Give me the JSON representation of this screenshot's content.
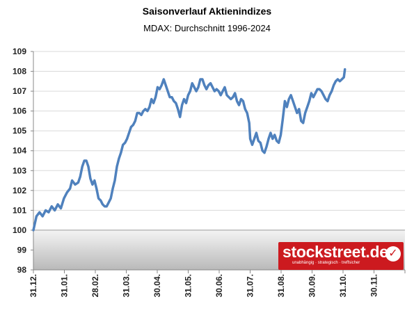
{
  "chart_data": {
    "type": "line",
    "title": "Saisonverlauf Aktienindizes",
    "subtitle": "MDAX: Durchschnitt 1996-2024",
    "xlabel": "",
    "ylabel": "",
    "ylim": [
      98,
      109
    ],
    "grid": true,
    "x_tick_labels": [
      "31.12.",
      "31.01.",
      "28.02.",
      "31.03.",
      "30.04.",
      "31.05.",
      "30.06.",
      "31.07.",
      "31.08.",
      "30.09.",
      "31.10.",
      "30.11."
    ],
    "y_tick_labels": [
      "98",
      "99",
      "100",
      "101",
      "102",
      "103",
      "104",
      "105",
      "106",
      "107",
      "108",
      "109"
    ],
    "x_range_days": [
      0,
      365
    ],
    "baseline": 100,
    "series": [
      {
        "color": "#4f81bd",
        "points": [
          [
            0,
            100.0
          ],
          [
            3,
            100.7
          ],
          [
            6,
            100.9
          ],
          [
            9,
            100.7
          ],
          [
            12,
            101.0
          ],
          [
            15,
            100.9
          ],
          [
            18,
            101.2
          ],
          [
            21,
            101.0
          ],
          [
            24,
            101.3
          ],
          [
            27,
            101.1
          ],
          [
            30,
            101.6
          ],
          [
            33,
            101.9
          ],
          [
            36,
            102.1
          ],
          [
            38,
            102.5
          ],
          [
            41,
            102.3
          ],
          [
            44,
            102.4
          ],
          [
            46,
            102.7
          ],
          [
            48,
            103.2
          ],
          [
            50,
            103.5
          ],
          [
            52,
            103.5
          ],
          [
            54,
            103.2
          ],
          [
            56,
            102.6
          ],
          [
            58,
            102.3
          ],
          [
            60,
            102.5
          ],
          [
            62,
            102.1
          ],
          [
            64,
            101.6
          ],
          [
            66,
            101.5
          ],
          [
            68,
            101.3
          ],
          [
            70,
            101.2
          ],
          [
            72,
            101.2
          ],
          [
            74,
            101.4
          ],
          [
            76,
            101.6
          ],
          [
            78,
            102.1
          ],
          [
            80,
            102.5
          ],
          [
            82,
            103.2
          ],
          [
            84,
            103.6
          ],
          [
            86,
            103.9
          ],
          [
            88,
            104.3
          ],
          [
            90,
            104.4
          ],
          [
            92,
            104.6
          ],
          [
            94,
            104.9
          ],
          [
            96,
            105.2
          ],
          [
            98,
            105.3
          ],
          [
            100,
            105.5
          ],
          [
            102,
            105.9
          ],
          [
            104,
            105.9
          ],
          [
            106,
            105.8
          ],
          [
            108,
            106.0
          ],
          [
            110,
            106.1
          ],
          [
            112,
            106.0
          ],
          [
            114,
            106.2
          ],
          [
            116,
            106.6
          ],
          [
            118,
            106.4
          ],
          [
            120,
            106.7
          ],
          [
            122,
            107.2
          ],
          [
            124,
            107.1
          ],
          [
            126,
            107.3
          ],
          [
            128,
            107.6
          ],
          [
            130,
            107.3
          ],
          [
            132,
            107.0
          ],
          [
            134,
            106.7
          ],
          [
            136,
            106.7
          ],
          [
            138,
            106.5
          ],
          [
            140,
            106.4
          ],
          [
            142,
            106.1
          ],
          [
            144,
            105.7
          ],
          [
            146,
            106.3
          ],
          [
            148,
            106.6
          ],
          [
            150,
            106.4
          ],
          [
            152,
            106.8
          ],
          [
            154,
            107.0
          ],
          [
            156,
            107.4
          ],
          [
            158,
            107.2
          ],
          [
            160,
            107.0
          ],
          [
            162,
            107.2
          ],
          [
            164,
            107.6
          ],
          [
            166,
            107.6
          ],
          [
            168,
            107.3
          ],
          [
            170,
            107.1
          ],
          [
            172,
            107.3
          ],
          [
            174,
            107.4
          ],
          [
            176,
            107.2
          ],
          [
            178,
            107.0
          ],
          [
            180,
            107.1
          ],
          [
            182,
            107.0
          ],
          [
            184,
            106.8
          ],
          [
            186,
            107.0
          ],
          [
            188,
            107.2
          ],
          [
            190,
            106.8
          ],
          [
            192,
            106.7
          ],
          [
            194,
            106.6
          ],
          [
            196,
            106.7
          ],
          [
            198,
            106.9
          ],
          [
            200,
            106.5
          ],
          [
            202,
            106.3
          ],
          [
            204,
            106.6
          ],
          [
            206,
            106.5
          ],
          [
            208,
            106.1
          ],
          [
            210,
            105.9
          ],
          [
            212,
            105.4
          ],
          [
            213,
            104.6
          ],
          [
            215,
            104.3
          ],
          [
            217,
            104.6
          ],
          [
            219,
            104.9
          ],
          [
            221,
            104.5
          ],
          [
            223,
            104.4
          ],
          [
            225,
            104.0
          ],
          [
            227,
            103.9
          ],
          [
            229,
            104.2
          ],
          [
            231,
            104.6
          ],
          [
            233,
            104.9
          ],
          [
            235,
            104.6
          ],
          [
            237,
            104.8
          ],
          [
            239,
            104.5
          ],
          [
            241,
            104.4
          ],
          [
            243,
            104.8
          ],
          [
            245,
            105.6
          ],
          [
            247,
            106.5
          ],
          [
            249,
            106.2
          ],
          [
            251,
            106.6
          ],
          [
            253,
            106.8
          ],
          [
            255,
            106.5
          ],
          [
            257,
            106.2
          ],
          [
            259,
            105.9
          ],
          [
            261,
            106.1
          ],
          [
            263,
            105.5
          ],
          [
            265,
            105.4
          ],
          [
            267,
            105.9
          ],
          [
            269,
            106.2
          ],
          [
            271,
            106.5
          ],
          [
            273,
            106.9
          ],
          [
            275,
            106.7
          ],
          [
            277,
            106.9
          ],
          [
            279,
            107.1
          ],
          [
            281,
            107.1
          ],
          [
            283,
            107.0
          ],
          [
            285,
            106.8
          ],
          [
            287,
            106.6
          ],
          [
            289,
            106.5
          ],
          [
            291,
            106.8
          ],
          [
            293,
            107.0
          ],
          [
            295,
            107.3
          ],
          [
            297,
            107.5
          ],
          [
            299,
            107.6
          ],
          [
            301,
            107.5
          ],
          [
            303,
            107.6
          ],
          [
            305,
            107.7
          ],
          [
            306,
            108.1
          ]
        ]
      }
    ]
  },
  "watermark": {
    "text": "stockstreet.de",
    "tagline": "unabhängig · strategisch · treffsicher",
    "background_color": "#cc1a1f"
  }
}
